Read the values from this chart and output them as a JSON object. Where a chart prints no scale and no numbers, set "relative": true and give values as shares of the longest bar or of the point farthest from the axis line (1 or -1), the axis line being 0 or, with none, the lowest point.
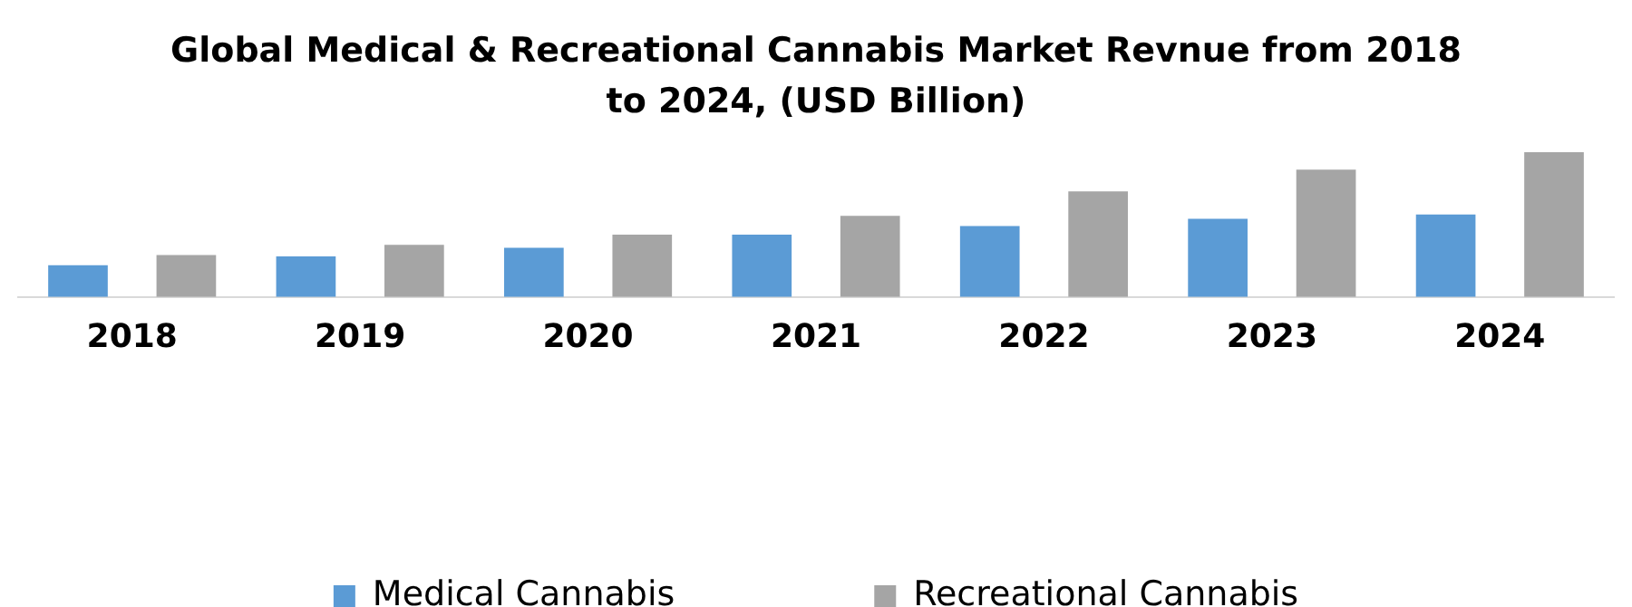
{
  "chart_data": {
    "type": "bar",
    "title": "Global Medical & Recreational Cannabis Market Revnue from 2018 to 2024, (USD Billion)",
    "categories": [
      "2018",
      "2019",
      "2020",
      "2021",
      "2022",
      "2023",
      "2024"
    ],
    "relative": true,
    "series": [
      {
        "name": "Medical Cannabis",
        "color": "#5b9bd5",
        "values": [
          0.22,
          0.28,
          0.34,
          0.43,
          0.49,
          0.54,
          0.57
        ]
      },
      {
        "name": "Recreational Cannabis",
        "color": "#a5a5a5",
        "values": [
          0.29,
          0.36,
          0.43,
          0.56,
          0.73,
          0.88,
          1
        ]
      }
    ],
    "legend": "bottom",
    "grid": false
  }
}
